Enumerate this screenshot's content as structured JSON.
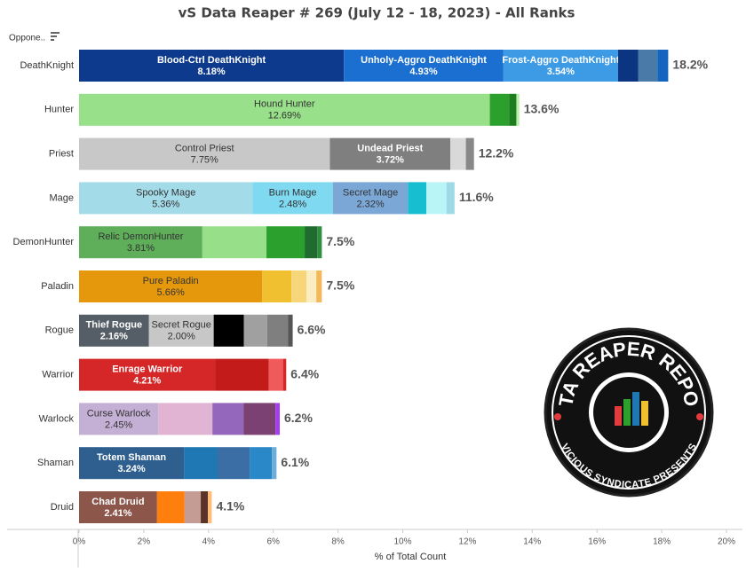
{
  "chart_data": {
    "type": "stacked-barh",
    "title": "vS Data Reaper # 269 (July 12 - 18, 2023) - All Ranks",
    "row_header": "Oppone..",
    "xlabel": "% of Total Count",
    "xlim": [
      0,
      20
    ],
    "xticks": [
      {
        "value": 0,
        "label": "0%"
      },
      {
        "value": 2,
        "label": "2%"
      },
      {
        "value": 4,
        "label": "4%"
      },
      {
        "value": 6,
        "label": "6%"
      },
      {
        "value": 8,
        "label": "8%"
      },
      {
        "value": 10,
        "label": "10%"
      },
      {
        "value": 12,
        "label": "12%"
      },
      {
        "value": 14,
        "label": "14%"
      },
      {
        "value": 16,
        "label": "16%"
      },
      {
        "value": 18,
        "label": "18%"
      },
      {
        "value": 20,
        "label": "20%"
      }
    ],
    "rows": [
      {
        "category": "DeathKnight",
        "total": 18.2,
        "total_label": "18.2%",
        "segments": [
          {
            "name": "Blood-Ctrl DeathKnight",
            "value": 8.18,
            "value_label": "8.18%",
            "color": "#0d3a8c"
          },
          {
            "name": "Unholy-Aggro DeathKnight",
            "value": 4.93,
            "value_label": "4.93%",
            "color": "#1a6fd0"
          },
          {
            "name": "Frost-Aggro DeathKnight",
            "value": 3.54,
            "value_label": "3.54%",
            "color": "#3d9be6"
          },
          {
            "value": 0.62,
            "color": "#0b3580"
          },
          {
            "value": 0.6,
            "color": "#4a7aa8"
          },
          {
            "value": 0.33,
            "color": "#1565c0"
          }
        ]
      },
      {
        "category": "Hunter",
        "total": 13.6,
        "total_label": "13.6%",
        "segments": [
          {
            "name": "Hound Hunter",
            "value": 12.69,
            "value_label": "12.69%",
            "color": "#98e08a"
          },
          {
            "value": 0.6,
            "color": "#2ca02c"
          },
          {
            "value": 0.22,
            "color": "#1e7d1e"
          },
          {
            "value": 0.09,
            "color": "#b7f0a8"
          }
        ]
      },
      {
        "category": "Priest",
        "total": 12.2,
        "total_label": "12.2%",
        "segments": [
          {
            "name": "Control Priest",
            "value": 7.75,
            "value_label": "7.75%",
            "color": "#c8c8c8"
          },
          {
            "name": "Undead Priest",
            "value": 3.72,
            "value_label": "3.72%",
            "color": "#7f7f7f"
          },
          {
            "value": 0.48,
            "color": "#d9d9d9"
          },
          {
            "value": 0.25,
            "color": "#888888"
          }
        ]
      },
      {
        "category": "Mage",
        "total": 11.6,
        "total_label": "11.6%",
        "segments": [
          {
            "name": "Spooky Mage",
            "value": 5.36,
            "value_label": "5.36%",
            "color": "#a3dbe9"
          },
          {
            "name": "Burn Mage",
            "value": 2.48,
            "value_label": "2.48%",
            "color": "#7fd9f0"
          },
          {
            "name": "Secret Mage",
            "value": 2.32,
            "value_label": "2.32%",
            "color": "#7ba7d6"
          },
          {
            "value": 0.57,
            "color": "#17becf"
          },
          {
            "value": 0.62,
            "color": "#b9f5f7"
          },
          {
            "value": 0.25,
            "color": "#9edae5"
          }
        ]
      },
      {
        "category": "DemonHunter",
        "total": 7.5,
        "total_label": "7.5%",
        "segments": [
          {
            "name": "Relic DemonHunter",
            "value": 3.81,
            "value_label": "3.81%",
            "color": "#5fae5a"
          },
          {
            "value": 1.98,
            "color": "#98df8a"
          },
          {
            "value": 1.18,
            "color": "#2ca02c"
          },
          {
            "value": 0.39,
            "color": "#1f6b30"
          },
          {
            "value": 0.14,
            "color": "#2f8f40"
          }
        ]
      },
      {
        "category": "Paladin",
        "total": 7.5,
        "total_label": "7.5%",
        "segments": [
          {
            "name": "Pure Paladin",
            "value": 5.66,
            "value_label": "5.66%",
            "color": "#e5980b"
          },
          {
            "value": 0.9,
            "color": "#f0c030"
          },
          {
            "value": 0.47,
            "color": "#f7d67a"
          },
          {
            "value": 0.3,
            "color": "#fcecc2"
          },
          {
            "value": 0.17,
            "color": "#f2b85c"
          }
        ]
      },
      {
        "category": "Rogue",
        "total": 6.6,
        "total_label": "6.6%",
        "segments": [
          {
            "name": "Thief Rogue",
            "value": 2.16,
            "value_label": "2.16%",
            "color": "#555e66"
          },
          {
            "name": "Secret Rogue",
            "value": 2.0,
            "value_label": "2.00%",
            "color": "#c7c7c7"
          },
          {
            "value": 0.93,
            "color": "#000000"
          },
          {
            "value": 0.72,
            "color": "#a0a0a0"
          },
          {
            "value": 0.65,
            "color": "#7f7f7f"
          },
          {
            "value": 0.14,
            "color": "#555555"
          }
        ]
      },
      {
        "category": "Warrior",
        "total": 6.4,
        "total_label": "6.4%",
        "segments": [
          {
            "name": "Enrage Warrior",
            "value": 4.21,
            "value_label": "4.21%",
            "color": "#d62728"
          },
          {
            "value": 1.65,
            "color": "#c31a1a"
          },
          {
            "value": 0.44,
            "color": "#f05a5a"
          },
          {
            "value": 0.1,
            "color": "#d62728"
          }
        ]
      },
      {
        "category": "Warlock",
        "total": 6.2,
        "total_label": "6.2%",
        "segments": [
          {
            "name": "Curse Warlock",
            "value": 2.45,
            "value_label": "2.45%",
            "color": "#c5b0d5"
          },
          {
            "value": 1.67,
            "color": "#e0b4d2"
          },
          {
            "value": 0.96,
            "color": "#9467bd"
          },
          {
            "value": 0.99,
            "color": "#7b4173"
          },
          {
            "value": 0.13,
            "color": "#a63cf0"
          }
        ]
      },
      {
        "category": "Shaman",
        "total": 6.1,
        "total_label": "6.1%",
        "segments": [
          {
            "name": "Totem Shaman",
            "value": 3.24,
            "value_label": "3.24%",
            "color": "#2f5f8f"
          },
          {
            "value": 1.04,
            "color": "#1f77b4"
          },
          {
            "value": 0.99,
            "color": "#3b6ea5"
          },
          {
            "value": 0.69,
            "color": "#2a88c8"
          },
          {
            "value": 0.14,
            "color": "#6baed6"
          }
        ]
      },
      {
        "category": "Druid",
        "total": 4.1,
        "total_label": "4.1%",
        "segments": [
          {
            "name": "Chad Druid",
            "value": 2.41,
            "value_label": "2.41%",
            "color": "#8c564b"
          },
          {
            "value": 0.85,
            "color": "#ff7f0e"
          },
          {
            "value": 0.5,
            "color": "#c49c94"
          },
          {
            "value": 0.22,
            "color": "#5a3228"
          },
          {
            "value": 0.12,
            "color": "#ffbb78"
          }
        ]
      }
    ]
  },
  "logo": {
    "title": "DATA REAPER REPORT",
    "subtitle": "VICIOUS SYNDICATE PRESENTS"
  }
}
